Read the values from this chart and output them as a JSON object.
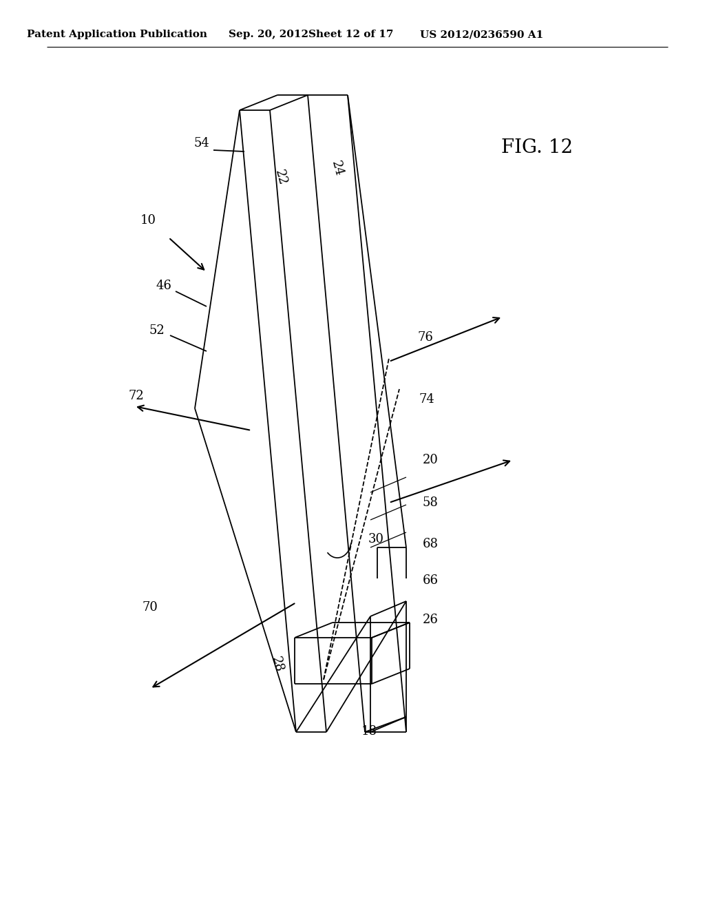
{
  "background_color": "#ffffff",
  "header_text": "Patent Application Publication",
  "header_date": "Sep. 20, 2012",
  "header_sheet": "Sheet 12 of 17",
  "header_patent": "US 2012/0236590 A1",
  "fig_label": "FIG. 12",
  "line_color": "#000000",
  "label_fontsize": 13,
  "header_fontsize": 11
}
